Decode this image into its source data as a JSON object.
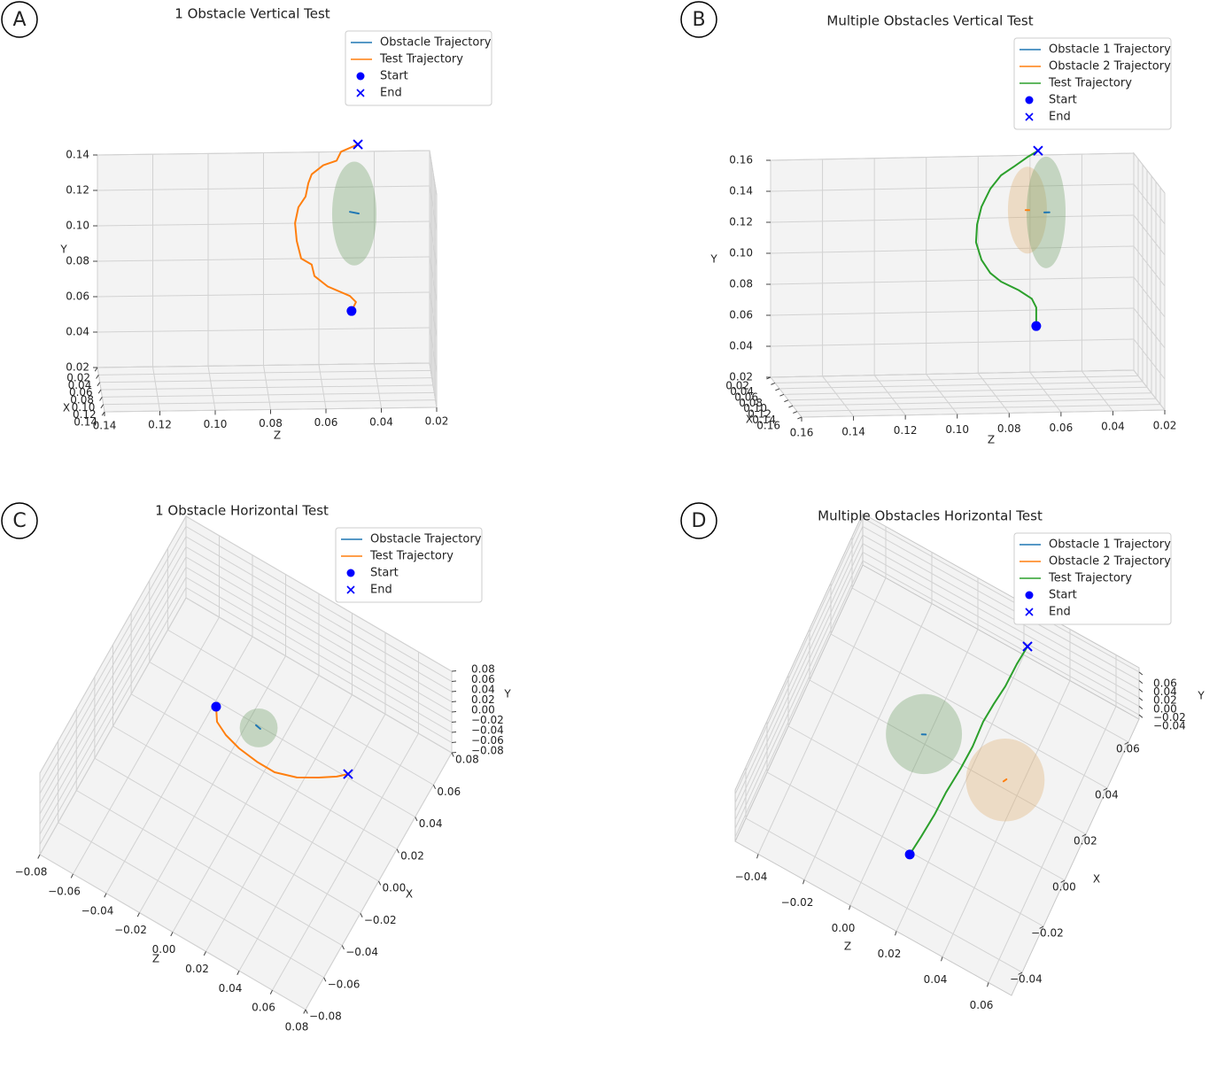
{
  "chart_data": [
    {
      "type": "line3d",
      "panel_label": "A",
      "title": "1 Obstacle Vertical Test",
      "xlabel": "X",
      "ylabel": "Y",
      "zlabel": "Z",
      "xlim": [
        0.02,
        0.14
      ],
      "ylim": [
        0.02,
        0.14
      ],
      "zlim": [
        0.02,
        0.14
      ],
      "xticks": [
        0.02,
        0.04,
        0.06,
        0.08,
        {
          "value": 0.1,
          "label": "0.10"
        },
        0.12,
        0.14
      ],
      "yticks": [
        0.02,
        0.04,
        0.06,
        0.08,
        {
          "value": 0.1,
          "label": "0.10"
        },
        0.12,
        0.14
      ],
      "zticks": [
        0.02,
        0.04,
        0.06,
        0.08,
        {
          "value": 0.1,
          "label": "0.10"
        },
        0.12,
        0.14
      ],
      "grid": true,
      "legend": "upper right",
      "series": [
        {
          "name": "Obstacle Trajectory",
          "color": "#1f77b4",
          "x": [
            0.02,
            0.02
          ],
          "y": [
            0.106,
            0.105
          ],
          "z": [
            0.0488,
            0.0456
          ]
        },
        {
          "name": "Test Trajectory",
          "color": "#ff7f0e",
          "x": [
            0.02,
            0.02,
            0.02,
            0.02,
            0.02,
            0.02,
            0.02,
            0.02,
            0.02,
            0.02,
            0.02,
            0.02,
            0.02,
            0.02,
            0.02,
            0.02,
            0.02
          ],
          "y": [
            0.05,
            0.055,
            0.0585,
            0.064,
            0.07,
            0.0765,
            0.08,
            0.09,
            0.1,
            0.109,
            0.115,
            0.1225,
            0.1275,
            0.1325,
            0.135,
            0.14,
            0.144
          ],
          "z": [
            0.0482,
            0.0466,
            0.0488,
            0.0568,
            0.0616,
            0.0626,
            0.0664,
            0.068,
            0.0686,
            0.0674,
            0.0648,
            0.0638,
            0.0626,
            0.0584,
            0.0536,
            0.052,
            0.0459
          ]
        }
      ],
      "markers": [
        {
          "name": "Start",
          "color": "#0000ff",
          "symbol": "circle",
          "x": 0.02,
          "y": 0.05,
          "z": 0.0482
        },
        {
          "name": "End",
          "color": "#0000ff",
          "symbol": "x",
          "x": 0.02,
          "y": 0.144,
          "z": 0.0459
        }
      ],
      "obstacles": [
        {
          "center": [
            0.02,
            0.105,
            0.0472
          ],
          "radius": [
            0.02,
            0.029,
            0.008
          ],
          "color": "#6e9e63"
        }
      ]
    },
    {
      "type": "line3d",
      "panel_label": "B",
      "title": "Multiple Obstacles Vertical Test",
      "xlabel": "X",
      "ylabel": "Y",
      "zlabel": "Z",
      "xlim": [
        0.02,
        0.16
      ],
      "ylim": [
        0.02,
        0.16
      ],
      "zlim": [
        0.02,
        0.16
      ],
      "xticks": [
        0.02,
        0.04,
        0.06,
        0.08,
        {
          "value": 0.1,
          "label": "0.10"
        },
        0.12,
        0.14,
        0.16
      ],
      "yticks": [
        0.02,
        0.04,
        0.06,
        0.08,
        {
          "value": 0.1,
          "label": "0.10"
        },
        0.12,
        0.14,
        0.16
      ],
      "zticks": [
        0.02,
        0.04,
        0.06,
        0.08,
        {
          "value": 0.1,
          "label": "0.10"
        },
        0.12,
        0.14,
        0.16
      ],
      "grid": true,
      "legend": "upper right",
      "series": [
        {
          "name": "Obstacle 1 Trajectory",
          "color": "#1f77b4",
          "x": [
            0.02,
            0.02
          ],
          "y": [
            0.1229,
            0.1229
          ],
          "z": [
            0.0545,
            0.0525
          ]
        },
        {
          "name": "Obstacle 2 Trajectory",
          "color": "#ff7f0e",
          "x": [
            0.02,
            0.02
          ],
          "y": [
            0.1246,
            0.1246
          ],
          "z": [
            0.0617,
            0.0603
          ]
        },
        {
          "name": "Test Trajectory",
          "color": "#2ca02c",
          "x": [
            0.02,
            0.02,
            0.02,
            0.02,
            0.02,
            0.02,
            0.02,
            0.02,
            0.02,
            0.02,
            0.02,
            0.02,
            0.02,
            0.02,
            0.02
          ],
          "y": [
            0.0497,
            0.0617,
            0.0674,
            0.0731,
            0.0788,
            0.0845,
            0.0931,
            0.1045,
            0.116,
            0.1274,
            0.1388,
            0.1474,
            0.153,
            0.1588,
            0.1628
          ],
          "z": [
            0.0576,
            0.0576,
            0.0593,
            0.0644,
            0.0712,
            0.0753,
            0.0787,
            0.0808,
            0.0804,
            0.0787,
            0.0753,
            0.0712,
            0.0661,
            0.061,
            0.0569
          ]
        }
      ],
      "markers": [
        {
          "name": "Start",
          "color": "#0000ff",
          "symbol": "circle",
          "x": 0.02,
          "y": 0.0497,
          "z": 0.0576
        },
        {
          "name": "End",
          "color": "#0000ff",
          "symbol": "x",
          "x": 0.02,
          "y": 0.1628,
          "z": 0.0569
        }
      ],
      "obstacles": [
        {
          "center": [
            0.02,
            0.1246,
            0.061
          ],
          "radius": [
            0.005,
            0.028,
            0.0075
          ],
          "color": "#e0b070"
        },
        {
          "center": [
            0.02,
            0.1229,
            0.0538
          ],
          "radius": [
            0.005,
            0.036,
            0.0075
          ],
          "color": "#6e9e63"
        }
      ]
    },
    {
      "type": "line3d",
      "panel_label": "C",
      "title": "1 Obstacle Horizontal Test",
      "xlabel": "X",
      "ylabel": "Y",
      "zlabel": "Z",
      "xlim": [
        -0.08,
        0.08
      ],
      "ylim": [
        -0.08,
        0.08
      ],
      "zlim": [
        -0.08,
        0.08
      ],
      "xticks": [
        {
          "value": -0.08,
          "label": "−0.08"
        },
        {
          "value": -0.06,
          "label": "−0.06"
        },
        {
          "value": -0.04,
          "label": "−0.04"
        },
        {
          "value": -0.02,
          "label": "−0.02"
        },
        {
          "value": 0,
          "label": "0.00"
        },
        0.02,
        0.04,
        0.06,
        0.08
      ],
      "yticks": [
        {
          "value": -0.08,
          "label": "−0.08"
        },
        {
          "value": -0.06,
          "label": "−0.06"
        },
        {
          "value": -0.04,
          "label": "−0.04"
        },
        {
          "value": -0.02,
          "label": "−0.02"
        },
        {
          "value": 0,
          "label": "0.00"
        },
        0.02,
        0.04,
        0.06,
        0.08
      ],
      "zticks": [
        {
          "value": -0.08,
          "label": "−0.08"
        },
        {
          "value": -0.06,
          "label": "−0.06"
        },
        {
          "value": -0.04,
          "label": "−0.04"
        },
        {
          "value": -0.02,
          "label": "−0.02"
        },
        {
          "value": 0,
          "label": "0.00"
        },
        0.02,
        0.04,
        0.06,
        0.08
      ],
      "grid": true,
      "legend": "upper right",
      "series": [
        {
          "name": "Obstacle Trajectory",
          "color": "#1f77b4",
          "x": [
            0.0204,
            0.0199
          ],
          "y": [
            0,
            0
          ],
          "z": [
            -0.0051,
            -0.0022
          ]
        },
        {
          "name": "Test Trajectory",
          "color": "#ff7f0e",
          "x": [
            0.0182,
            0.0114,
            0.0076,
            0.005,
            0.0036,
            0.0035,
            0.0071,
            0.0131,
            0.0184,
            0.0227
          ],
          "y": [
            0,
            0,
            0,
            0,
            0,
            0,
            0,
            0,
            0,
            0
          ],
          "z": [
            -0.0279,
            -0.0236,
            -0.0162,
            -0.0068,
            0.0047,
            0.0154,
            0.0268,
            0.0368,
            0.0446,
            0.0491
          ]
        }
      ],
      "markers": [
        {
          "name": "Start",
          "color": "#0000ff",
          "symbol": "circle",
          "x": 0.0182,
          "y": 0,
          "z": -0.0279
        },
        {
          "name": "End",
          "color": "#0000ff",
          "symbol": "x",
          "x": 0.0227,
          "y": 0,
          "z": 0.0491
        }
      ],
      "obstacles": [
        {
          "center": [
            0.0199,
            0,
            -0.0032
          ],
          "radius": [
            0.01,
            0.01,
            0.01
          ],
          "color": "#6e9e63"
        }
      ]
    },
    {
      "type": "line3d",
      "panel_label": "D",
      "title": "Multiple Obstacles Horizontal Test",
      "xlabel": "X",
      "ylabel": "Y",
      "zlabel": "Z",
      "xlim": [
        -0.05,
        0.07
      ],
      "ylim": [
        -0.05,
        0.07
      ],
      "zlim": [
        -0.05,
        0.07
      ],
      "xticks": [
        {
          "value": -0.04,
          "label": "−0.04"
        },
        {
          "value": -0.02,
          "label": "−0.02"
        },
        {
          "value": 0,
          "label": "0.00"
        },
        0.02,
        0.04,
        0.06
      ],
      "yticks": [
        {
          "value": -0.04,
          "label": "−0.04"
        },
        {
          "value": -0.02,
          "label": "−0.02"
        },
        {
          "value": 0,
          "label": "0.00"
        },
        0.02,
        0.04,
        0.06
      ],
      "zticks": [
        {
          "value": -0.04,
          "label": "−0.04"
        },
        {
          "value": -0.02,
          "label": "−0.02"
        },
        {
          "value": 0,
          "label": "0.00"
        },
        0.02,
        0.04,
        0.06
      ],
      "grid": true,
      "legend": "upper right",
      "series": [
        {
          "name": "Obstacle 1 Trajectory",
          "color": "#1f77b4",
          "x": [
            0.0155,
            0.0162
          ],
          "y": [
            0,
            0
          ],
          "z": [
            0.0008,
            0.0022
          ]
        },
        {
          "name": "Obstacle 2 Trajectory",
          "color": "#ff7f0e",
          "x": [
            0.015,
            0.0163
          ],
          "y": [
            0,
            0
          ],
          "z": [
            0.0365,
            0.0372
          ]
        },
        {
          "name": "Test Trajectory",
          "color": "#2ca02c",
          "x": [
            -0.0283,
            -0.02,
            -0.0098,
            0.0001,
            0.0115,
            0.0211,
            0.0317,
            0.0399,
            0.0482,
            0.0581,
            0.0662
          ],
          "y": [
            0,
            0,
            0,
            0,
            0,
            0,
            0,
            0,
            0,
            0,
            0
          ],
          "z": [
            0.0158,
            0.0169,
            0.018,
            0.0184,
            0.0197,
            0.0203,
            0.02,
            0.0208,
            0.022,
            0.0224,
            0.0233
          ]
        }
      ],
      "markers": [
        {
          "name": "Start",
          "color": "#0000ff",
          "symbol": "circle",
          "x": -0.0283,
          "y": 0,
          "z": 0.0158
        },
        {
          "name": "End",
          "color": "#0000ff",
          "symbol": "x",
          "x": 0.0662,
          "y": 0,
          "z": 0.0233
        }
      ],
      "obstacles": [
        {
          "center": [
            0.016,
            0,
            0.0015
          ],
          "radius": [
            0.015,
            0.015,
            0.015
          ],
          "color": "#6e9e63"
        },
        {
          "center": [
            0.0158,
            0,
            0.0369
          ],
          "radius": [
            0.0155,
            0.0155,
            0.0155
          ],
          "color": "#e0b070"
        }
      ]
    }
  ]
}
